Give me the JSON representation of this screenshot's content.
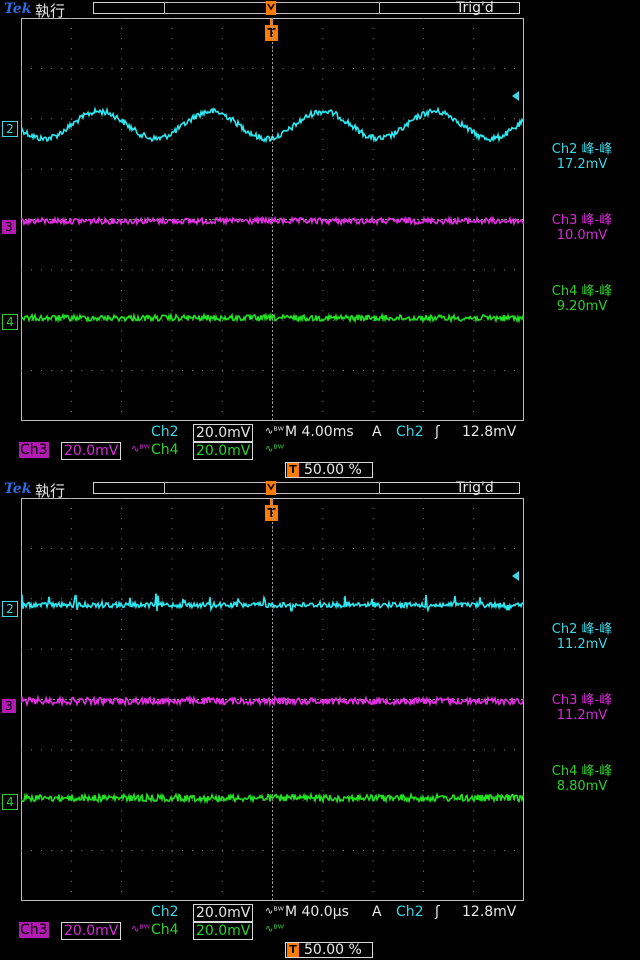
{
  "screens": [
    {
      "brand": "Tek",
      "run_status": "執行",
      "trig_status": "Trig'd",
      "trig_marker": "T",
      "channels": {
        "ch2": "2",
        "ch3": "3",
        "ch4": "4"
      },
      "measurements": [
        {
          "label": "Ch2 峰-峰",
          "value": "17.2mV",
          "color": "#3dd6e6"
        },
        {
          "label": "Ch3 峰-峰",
          "value": "10.0mV",
          "color": "#d92ad9"
        },
        {
          "label": "Ch4 峰-峰",
          "value": "9.20mV",
          "color": "#2ccf2c"
        }
      ],
      "info": {
        "ch2_label": "Ch2",
        "ch2_scale": "20.0mV",
        "bw_symbol": "∿ᴮᵂ",
        "timebase": "M 4.00ms",
        "acq_mode": "A",
        "trig_source": "Ch2",
        "trig_slope": "ʃ",
        "trig_level": "12.8mV",
        "ch3_label": "Ch3",
        "ch3_scale": "20.0mV",
        "ch4_label": "Ch4",
        "ch4_scale": "20.0mV",
        "position": "50.00 %"
      },
      "waveform": {
        "ch2_cycles": 4.5,
        "ch2_amplitude_mv": 12,
        "ch2_noise": "medium",
        "ch3_noise": "medium",
        "ch4_noise": "medium"
      }
    },
    {
      "brand": "Tek",
      "run_status": "執行",
      "trig_status": "Trig'd",
      "trig_marker": "T",
      "channels": {
        "ch2": "2",
        "ch3": "3",
        "ch4": "4"
      },
      "measurements": [
        {
          "label": "Ch2 峰-峰",
          "value": "11.2mV",
          "color": "#3dd6e6"
        },
        {
          "label": "Ch3 峰-峰",
          "value": "11.2mV",
          "color": "#d92ad9"
        },
        {
          "label": "Ch4 峰-峰",
          "value": "8.80mV",
          "color": "#2ccf2c"
        }
      ],
      "info": {
        "ch2_label": "Ch2",
        "ch2_scale": "20.0mV",
        "bw_symbol": "∿ᴮᵂ",
        "timebase": "M 40.0µs",
        "acq_mode": "A",
        "trig_source": "Ch2",
        "trig_slope": "ʃ",
        "trig_level": "12.8mV",
        "ch3_label": "Ch3",
        "ch3_scale": "20.0mV",
        "ch4_label": "Ch4",
        "ch4_scale": "20.0mV",
        "position": "50.00 %"
      },
      "waveform": {
        "ch2_cycles": 0,
        "ch2_amplitude_mv": 0,
        "ch2_noise": "spiky",
        "ch3_noise": "high",
        "ch4_noise": "high"
      }
    }
  ]
}
